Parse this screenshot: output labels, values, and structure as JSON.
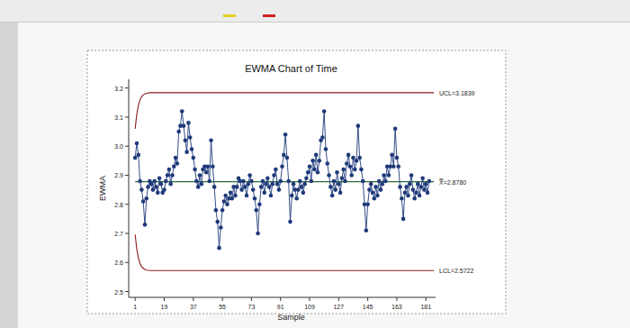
{
  "chart_data": {
    "type": "line",
    "title": "EWMA Chart of Time",
    "x_label": "Sample",
    "y_label": "EWMA",
    "xlim": [
      -3,
      187
    ],
    "ylim": [
      2.48,
      3.23
    ],
    "xticks": [
      1,
      19,
      37,
      55,
      73,
      91,
      109,
      127,
      145,
      163,
      181
    ],
    "yticks": [
      2.5,
      2.6,
      2.7,
      2.8,
      2.9,
      {
        "value": 3,
        "label": "3.0"
      },
      3.1,
      3.2
    ],
    "grid": false,
    "series": [
      {
        "type": "line",
        "color": "#1f3a7a",
        "marker": "circle",
        "line_style": "solid",
        "x": [
          1,
          2,
          3,
          4,
          5,
          6,
          7,
          8,
          9,
          10,
          11,
          12,
          13,
          14,
          15,
          16,
          17,
          18,
          19,
          20,
          21,
          22,
          23,
          24,
          25,
          26,
          27,
          28,
          29,
          30,
          31,
          32,
          33,
          34,
          35,
          36,
          37,
          38,
          39,
          40,
          41,
          42,
          43,
          44,
          45,
          46,
          47,
          48,
          49,
          50,
          51,
          52,
          53,
          54,
          55,
          56,
          57,
          58,
          59,
          60,
          61,
          62,
          63,
          64,
          65,
          66,
          67,
          68,
          69,
          70,
          71,
          72,
          73,
          74,
          75,
          76,
          77,
          78,
          79,
          80,
          81,
          82,
          83,
          84,
          85,
          86,
          87,
          88,
          89,
          90,
          91,
          92,
          93,
          94,
          95,
          96,
          97,
          98,
          99,
          100,
          101,
          102,
          103,
          104,
          105,
          106,
          107,
          108,
          109,
          110,
          111,
          112,
          113,
          114,
          115,
          116,
          117,
          118,
          119,
          120,
          121,
          122,
          123,
          124,
          125,
          126,
          127,
          128,
          129,
          130,
          131,
          132,
          133,
          134,
          135,
          136,
          137,
          138,
          139,
          140,
          141,
          142,
          143,
          144,
          145,
          146,
          147,
          148,
          149,
          150,
          151,
          152,
          153,
          154,
          155,
          156,
          157,
          158,
          159,
          160,
          161,
          162,
          163,
          164,
          165,
          166,
          167,
          168,
          169,
          170,
          171,
          172,
          173,
          174,
          175,
          176,
          177,
          178,
          179,
          180,
          181,
          182,
          183
        ],
        "values": [
          2.96,
          3.01,
          2.97,
          2.88,
          2.85,
          2.81,
          2.73,
          2.82,
          2.86,
          2.88,
          2.87,
          2.85,
          2.88,
          2.86,
          2.84,
          2.89,
          2.87,
          2.84,
          2.85,
          2.88,
          2.9,
          2.92,
          2.87,
          2.9,
          2.93,
          2.96,
          2.94,
          3.05,
          3.07,
          3.12,
          3.07,
          3.02,
          2.98,
          3.08,
          3.03,
          2.99,
          2.96,
          2.92,
          2.88,
          2.86,
          2.9,
          2.87,
          2.92,
          2.93,
          2.91,
          2.93,
          2.88,
          3.02,
          2.93,
          2.86,
          2.78,
          2.74,
          2.65,
          2.72,
          2.78,
          2.81,
          2.83,
          2.8,
          2.82,
          2.84,
          2.82,
          2.86,
          2.83,
          2.86,
          2.89,
          2.88,
          2.85,
          2.88,
          2.86,
          2.83,
          2.87,
          2.9,
          2.88,
          2.85,
          2.82,
          2.78,
          2.7,
          2.8,
          2.86,
          2.88,
          2.84,
          2.87,
          2.89,
          2.86,
          2.83,
          2.87,
          2.9,
          2.92,
          2.87,
          2.85,
          2.88,
          2.93,
          2.97,
          3.04,
          2.96,
          2.88,
          2.74,
          2.83,
          2.87,
          2.85,
          2.82,
          2.85,
          2.88,
          2.86,
          2.84,
          2.87,
          2.89,
          2.91,
          2.93,
          2.88,
          2.95,
          2.92,
          2.97,
          2.91,
          2.95,
          3.02,
          3.03,
          3.12,
          2.99,
          2.94,
          2.9,
          2.86,
          2.83,
          2.88,
          2.85,
          2.91,
          2.87,
          2.84,
          2.89,
          2.92,
          2.88,
          2.94,
          2.97,
          2.93,
          2.9,
          2.96,
          2.92,
          2.95,
          3.07,
          2.96,
          2.92,
          2.88,
          2.8,
          2.71,
          2.8,
          2.85,
          2.87,
          2.84,
          2.82,
          2.86,
          2.83,
          2.88,
          2.85,
          2.87,
          2.9,
          2.88,
          2.93,
          2.9,
          2.93,
          2.97,
          2.93,
          3.06,
          2.96,
          2.93,
          2.86,
          2.82,
          2.75,
          2.84,
          2.86,
          2.83,
          2.87,
          2.9,
          2.85,
          2.82,
          2.84,
          2.87,
          2.83,
          2.86,
          2.89,
          2.85,
          2.87,
          2.84,
          2.88
        ]
      },
      {
        "type": "line",
        "color": "#8b1c1c",
        "line_style": "solid",
        "x": [
          1,
          2,
          3,
          4,
          5,
          6,
          7,
          8,
          9,
          10,
          186
        ],
        "values": [
          3.06,
          3.11,
          3.14,
          3.16,
          3.17,
          3.176,
          3.18,
          3.182,
          3.183,
          3.1839,
          3.1839
        ]
      },
      {
        "type": "line",
        "color": "#8b1c1c",
        "line_style": "solid",
        "x": [
          1,
          2,
          3,
          4,
          5,
          6,
          7,
          8,
          9,
          10,
          186
        ],
        "values": [
          2.696,
          2.646,
          2.616,
          2.596,
          2.586,
          2.58,
          2.576,
          2.574,
          2.573,
          2.5722,
          2.5722
        ]
      },
      {
        "type": "line",
        "color": "#2e6b3a",
        "line_style": "solid",
        "x": [
          1,
          186
        ],
        "values": [
          2.878,
          2.878
        ]
      }
    ],
    "annotations": [
      {
        "text": "UCL=3.1839",
        "value": 3.1839
      },
      {
        "text": "X̿=2.8780",
        "value": 2.878
      },
      {
        "text": "LCL=2.5722",
        "value": 2.5722
      }
    ]
  }
}
